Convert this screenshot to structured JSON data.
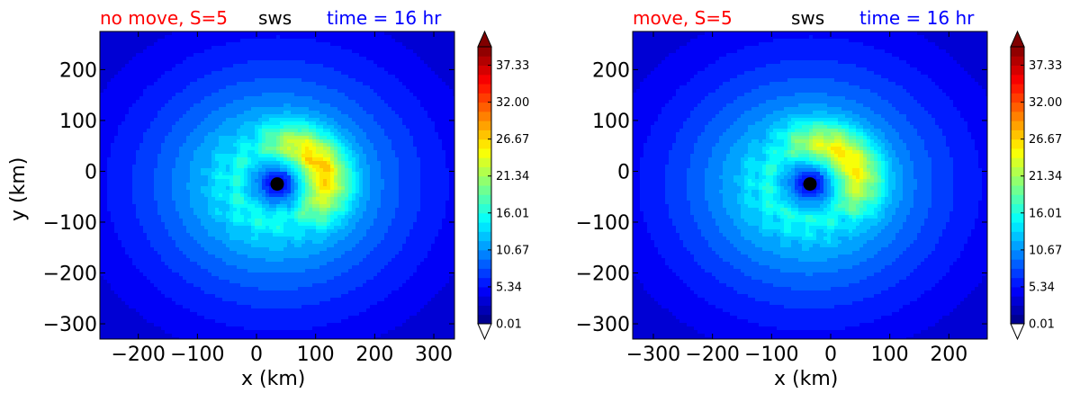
{
  "colors": {
    "title_left": "#ff0000",
    "title_mid": "#000000",
    "title_right": "#0000ff",
    "marker": "#000000"
  },
  "colormap": "jet",
  "chart_data": [
    {
      "type": "heatmap",
      "title_left": "no move, S=5",
      "title_mid": "sws",
      "title_right": "time = 16 hr",
      "xlabel": "x (km)",
      "ylabel": "y (km)",
      "xlim": [
        -265,
        335
      ],
      "ylim": [
        -330,
        275
      ],
      "xticks": [
        -200,
        -100,
        0,
        100,
        200,
        300
      ],
      "xtick_labels": [
        "−200",
        "−100",
        "0",
        "100",
        "200",
        "300"
      ],
      "yticks": [
        200,
        100,
        0,
        -100,
        -200,
        -300
      ],
      "ytick_labels": [
        "200",
        "100",
        "0",
        "−100",
        "−200",
        "−300"
      ],
      "center_marker": {
        "x": 35,
        "y": -25
      },
      "storm_center": {
        "x": 35,
        "y": -25
      },
      "asymmetry": "east",
      "colorbar": {
        "min": 0.01,
        "max": 40,
        "ticks": [
          37.33,
          32.0,
          26.67,
          21.34,
          16.01,
          10.67,
          5.34,
          0.01
        ],
        "tick_labels": [
          "37.33",
          "32.00",
          "26.67",
          "21.34",
          "16.01",
          "10.67",
          "5.34",
          "0.01"
        ],
        "extend": "both"
      }
    },
    {
      "type": "heatmap",
      "title_left": "move, S=5",
      "title_mid": "sws",
      "title_right": "time = 16 hr",
      "xlabel": "x (km)",
      "ylabel": "",
      "xlim": [
        -335,
        265
      ],
      "ylim": [
        -330,
        275
      ],
      "xticks": [
        -300,
        -200,
        -100,
        0,
        100,
        200
      ],
      "xtick_labels": [
        "−300",
        "−200",
        "−100",
        "0",
        "100",
        "200"
      ],
      "yticks": [
        200,
        100,
        0,
        -100,
        -200,
        -300
      ],
      "ytick_labels": [
        "200",
        "100",
        "0",
        "−100",
        "−200",
        "−300"
      ],
      "center_marker": {
        "x": -35,
        "y": -25
      },
      "storm_center": {
        "x": -35,
        "y": -25
      },
      "asymmetry": "northeast",
      "colorbar": {
        "min": 0.01,
        "max": 40,
        "ticks": [
          37.33,
          32.0,
          26.67,
          21.34,
          16.01,
          10.67,
          5.34,
          0.01
        ],
        "tick_labels": [
          "37.33",
          "32.00",
          "26.67",
          "21.34",
          "16.01",
          "10.67",
          "5.34",
          "0.01"
        ],
        "extend": "both"
      }
    }
  ]
}
